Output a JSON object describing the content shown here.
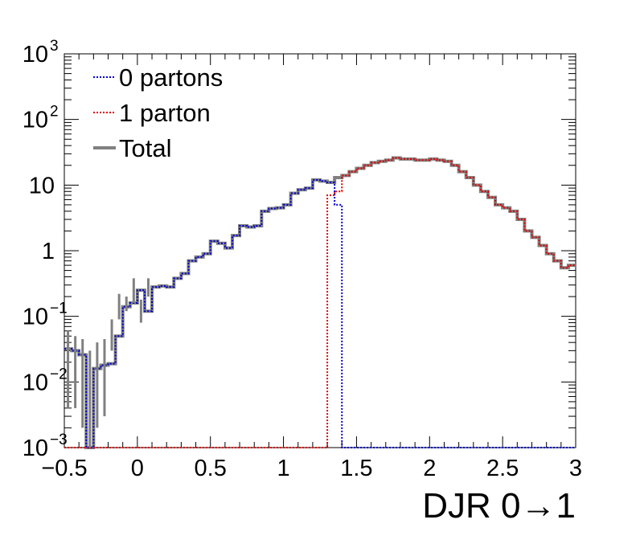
{
  "chart_data": {
    "type": "step histogram",
    "xlabel": "DJR 0→1",
    "ylabel": "",
    "x_range": [
      -0.5,
      3.0
    ],
    "y_range": [
      0.001,
      1000
    ],
    "y_scale": "log",
    "bin_width": 0.05,
    "bin_start": -0.5,
    "x_ticks": [
      "−0.5",
      "0",
      "0.5",
      "1",
      "1.5",
      "2",
      "2.5",
      "3"
    ],
    "x_tick_values": [
      -0.5,
      0,
      0.5,
      1,
      1.5,
      2,
      2.5,
      3
    ],
    "y_ticks": [
      {
        "value": 1000,
        "base": "10",
        "exp": "3"
      },
      {
        "value": 100,
        "base": "10",
        "exp": "2"
      },
      {
        "value": 10,
        "base": "10",
        "exp": ""
      },
      {
        "value": 1,
        "base": "1",
        "exp": ""
      },
      {
        "value": 0.1,
        "base": "10",
        "exp": "−1"
      },
      {
        "value": 0.01,
        "base": "10",
        "exp": "−2"
      },
      {
        "value": 0.001,
        "base": "10",
        "exp": "−3"
      }
    ],
    "legend_position": "top-left",
    "colors": {
      "zero_partons": "#0000cc",
      "one_parton": "#dd0000",
      "total": "#808080"
    },
    "series": [
      {
        "name": "0 partons",
        "color": "#0000cc",
        "style": "dotted",
        "values": [
          0.032,
          0.03,
          0.026,
          0.0009,
          0.016,
          0.018,
          0.019,
          0.05,
          0.14,
          0.16,
          0.25,
          0.12,
          0.28,
          0.29,
          0.28,
          0.38,
          0.45,
          0.7,
          0.8,
          0.9,
          1.4,
          1.3,
          1.1,
          1.7,
          2.4,
          2.3,
          2.4,
          4.0,
          4.4,
          4.5,
          5.0,
          7.5,
          8.5,
          9.0,
          12.0,
          11.5,
          11.0,
          5.0,
          0.0009,
          0.0009,
          0.0009,
          0.0009,
          0.0009,
          0.0009,
          0.0009,
          0.0009,
          0.0009,
          0.0009,
          0.0009,
          0.0009,
          0.0009,
          0.0009,
          0.0009,
          0.0009,
          0.0009,
          0.0009,
          0.0009,
          0.0009,
          0.0009,
          0.0009,
          0.0009,
          0.0009,
          0.0009,
          0.0009,
          0.0009,
          0.0009,
          0.0009,
          0.0009,
          0.0009,
          0.0009
        ]
      },
      {
        "name": "1 parton",
        "color": "#dd0000",
        "style": "dotted",
        "values": [
          0.0009,
          0.0009,
          0.0009,
          0.0009,
          0.0009,
          0.0009,
          0.0009,
          0.0009,
          0.0009,
          0.0009,
          0.0009,
          0.0009,
          0.0009,
          0.0009,
          0.0009,
          0.0009,
          0.0009,
          0.0009,
          0.0009,
          0.0009,
          0.0009,
          0.0009,
          0.0009,
          0.0009,
          0.0009,
          0.0009,
          0.0009,
          0.0009,
          0.0009,
          0.0009,
          0.0009,
          0.0009,
          0.0009,
          0.0009,
          0.0009,
          0.0009,
          7.0,
          8.0,
          14.0,
          16.0,
          18.0,
          20.0,
          22.0,
          23.0,
          24.0,
          26.0,
          25.0,
          25.0,
          24.0,
          24.0,
          25.0,
          24.0,
          23.0,
          20.0,
          16.0,
          13.0,
          10.0,
          8.0,
          6.5,
          5.0,
          4.5,
          4.0,
          3.0,
          2.0,
          1.6,
          1.2,
          0.9,
          0.7,
          0.55,
          0.6
        ]
      },
      {
        "name": "Total",
        "color": "#808080",
        "style": "solid",
        "values": [
          0.032,
          0.03,
          0.026,
          0.0009,
          0.016,
          0.018,
          0.019,
          0.05,
          0.14,
          0.16,
          0.25,
          0.12,
          0.28,
          0.29,
          0.28,
          0.38,
          0.45,
          0.7,
          0.8,
          0.9,
          1.4,
          1.3,
          1.1,
          1.7,
          2.4,
          2.3,
          2.4,
          4.0,
          4.4,
          4.5,
          5.0,
          7.5,
          8.5,
          9.0,
          12.0,
          11.5,
          11.0,
          13.0,
          14.0,
          16.0,
          18.0,
          20.0,
          22.0,
          23.0,
          24.0,
          26.0,
          25.0,
          25.0,
          24.0,
          24.0,
          25.0,
          24.0,
          23.0,
          20.0,
          16.0,
          13.0,
          10.0,
          8.0,
          6.5,
          5.0,
          4.5,
          4.0,
          3.0,
          2.0,
          1.6,
          1.2,
          0.9,
          0.7,
          0.55,
          0.6
        ]
      }
    ],
    "error_bars": [
      {
        "x": -0.475,
        "low": 0.004,
        "high": 0.06
      },
      {
        "x": -0.425,
        "low": 0.004,
        "high": 0.05
      },
      {
        "x": -0.375,
        "low": 0.002,
        "high": 0.045
      },
      {
        "x": -0.325,
        "low": 0.001,
        "high": 0.03
      },
      {
        "x": -0.275,
        "low": 0.002,
        "high": 0.04
      },
      {
        "x": -0.225,
        "low": 0.003,
        "high": 0.045
      },
      {
        "x": -0.175,
        "low": 0.03,
        "high": 0.09
      },
      {
        "x": -0.125,
        "low": 0.09,
        "high": 0.22
      },
      {
        "x": -0.075,
        "low": 0.12,
        "high": 0.2
      },
      {
        "x": -0.025,
        "low": 0.16,
        "high": 0.38
      },
      {
        "x": 0.025,
        "low": 0.08,
        "high": 0.18
      },
      {
        "x": 0.075,
        "low": 0.2,
        "high": 0.38
      }
    ]
  }
}
